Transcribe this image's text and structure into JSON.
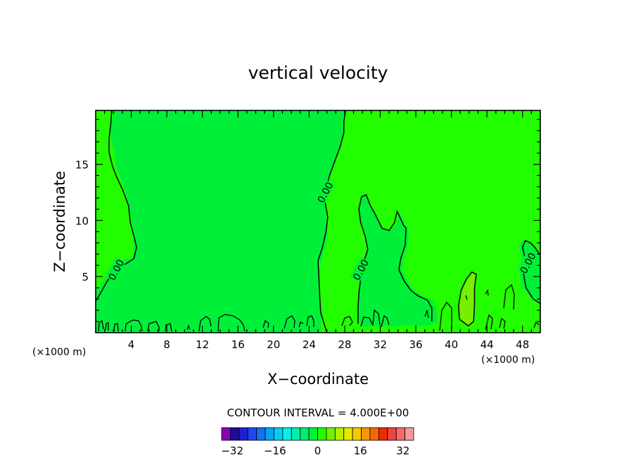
{
  "chart_data": {
    "type": "contour",
    "title": "vertical velocity",
    "xlabel": "X−coordinate",
    "ylabel": "Z−coordinate",
    "x_unit_left": "(×1000 m)",
    "x_unit_right": "(×1000 m)",
    "xlim": [
      0,
      50
    ],
    "ylim": [
      0,
      19.8
    ],
    "x_ticks": [
      4,
      8,
      12,
      16,
      20,
      24,
      28,
      32,
      36,
      40,
      44,
      48
    ],
    "y_ticks": [
      5,
      10,
      15
    ],
    "contour_labels": [
      {
        "text": "0.00",
        "x": 2.3,
        "y": 5.6
      },
      {
        "text": "0.00",
        "x": 25.8,
        "y": 12.5
      },
      {
        "text": "0.00",
        "x": 29.8,
        "y": 5.6
      },
      {
        "text": "0.00",
        "x": 48.6,
        "y": 6.2
      }
    ],
    "contour_lines": [
      [
        [
          0.0,
          2.8
        ],
        [
          0.6,
          3.6
        ],
        [
          1.3,
          4.6
        ],
        [
          2.3,
          5.6
        ],
        [
          3.5,
          6.2
        ],
        [
          4.3,
          6.6
        ],
        [
          4.6,
          7.6
        ],
        [
          4.3,
          8.6
        ],
        [
          3.9,
          9.8
        ],
        [
          3.7,
          11.3
        ],
        [
          3.0,
          12.8
        ],
        [
          2.4,
          13.8
        ],
        [
          1.9,
          14.8
        ],
        [
          1.5,
          16.1
        ],
        [
          1.5,
          17.3
        ],
        [
          1.7,
          18.6
        ],
        [
          1.8,
          19.8
        ]
      ],
      [
        [
          26.0,
          0.0
        ],
        [
          25.3,
          1.8
        ],
        [
          25.2,
          3.2
        ],
        [
          25.1,
          4.8
        ],
        [
          25.0,
          6.4
        ],
        [
          25.5,
          7.6
        ],
        [
          25.9,
          9.0
        ],
        [
          26.1,
          10.3
        ],
        [
          25.8,
          11.6
        ],
        [
          25.9,
          12.8
        ],
        [
          26.3,
          14.0
        ],
        [
          26.9,
          15.3
        ],
        [
          27.5,
          16.6
        ],
        [
          27.9,
          17.8
        ],
        [
          27.9,
          18.8
        ],
        [
          28.1,
          19.8
        ]
      ],
      [
        [
          29.5,
          0.8
        ],
        [
          29.5,
          2.2
        ],
        [
          29.6,
          3.5
        ],
        [
          29.8,
          4.8
        ],
        [
          30.1,
          6.2
        ],
        [
          30.6,
          7.4
        ],
        [
          30.3,
          8.6
        ],
        [
          29.8,
          9.8
        ],
        [
          29.6,
          11.0
        ],
        [
          29.9,
          12.1
        ],
        [
          30.4,
          12.3
        ],
        [
          30.9,
          11.3
        ],
        [
          31.4,
          10.6
        ],
        [
          32.2,
          9.3
        ],
        [
          33.0,
          9.1
        ],
        [
          33.6,
          9.8
        ],
        [
          33.9,
          10.8
        ],
        [
          34.2,
          10.3
        ],
        [
          34.6,
          9.6
        ],
        [
          34.9,
          9.3
        ],
        [
          34.8,
          7.8
        ],
        [
          34.3,
          6.6
        ],
        [
          34.1,
          5.6
        ],
        [
          34.7,
          4.6
        ],
        [
          35.4,
          3.8
        ],
        [
          36.2,
          3.3
        ],
        [
          37.3,
          2.9
        ],
        [
          37.8,
          2.2
        ],
        [
          37.8,
          1.0
        ]
      ],
      [
        [
          50.0,
          2.6
        ],
        [
          49.2,
          3.0
        ],
        [
          48.4,
          4.0
        ],
        [
          48.1,
          5.3
        ],
        [
          48.3,
          6.6
        ],
        [
          48.0,
          7.6
        ],
        [
          48.3,
          8.2
        ],
        [
          48.9,
          8.0
        ],
        [
          49.4,
          7.6
        ],
        [
          49.8,
          7.1
        ],
        [
          50.0,
          6.9
        ]
      ],
      [
        [
          40.9,
          1.2
        ],
        [
          40.8,
          2.4
        ],
        [
          41.1,
          3.8
        ],
        [
          41.7,
          4.8
        ],
        [
          42.3,
          5.4
        ],
        [
          42.8,
          5.2
        ],
        [
          42.6,
          4.0
        ],
        [
          42.6,
          2.6
        ],
        [
          42.5,
          1.0
        ],
        [
          41.9,
          0.6
        ],
        [
          40.9,
          1.2
        ]
      ]
    ],
    "colorbar": {
      "title": "CONTOUR INTERVAL = 4.000E+00",
      "tick_labels": [
        "−32",
        "−16",
        "0",
        "16",
        "32"
      ],
      "tick_values": [
        -32,
        -16,
        0,
        16,
        32
      ],
      "interval": 4,
      "min": -36,
      "max": 36,
      "colors": [
        "#8a00b8",
        "#1e0aa0",
        "#1f1fd0",
        "#1f47ee",
        "#0f74f0",
        "#06a3f4",
        "#06ccf2",
        "#06f0e4",
        "#00f0b0",
        "#00ec6e",
        "#00f03a",
        "#22fd00",
        "#76ef00",
        "#b4ef00",
        "#e8e800",
        "#f5c800",
        "#f7980a",
        "#f56a00",
        "#ee2a00",
        "#ee4444",
        "#f46a6a",
        "#f49a9a"
      ]
    }
  }
}
